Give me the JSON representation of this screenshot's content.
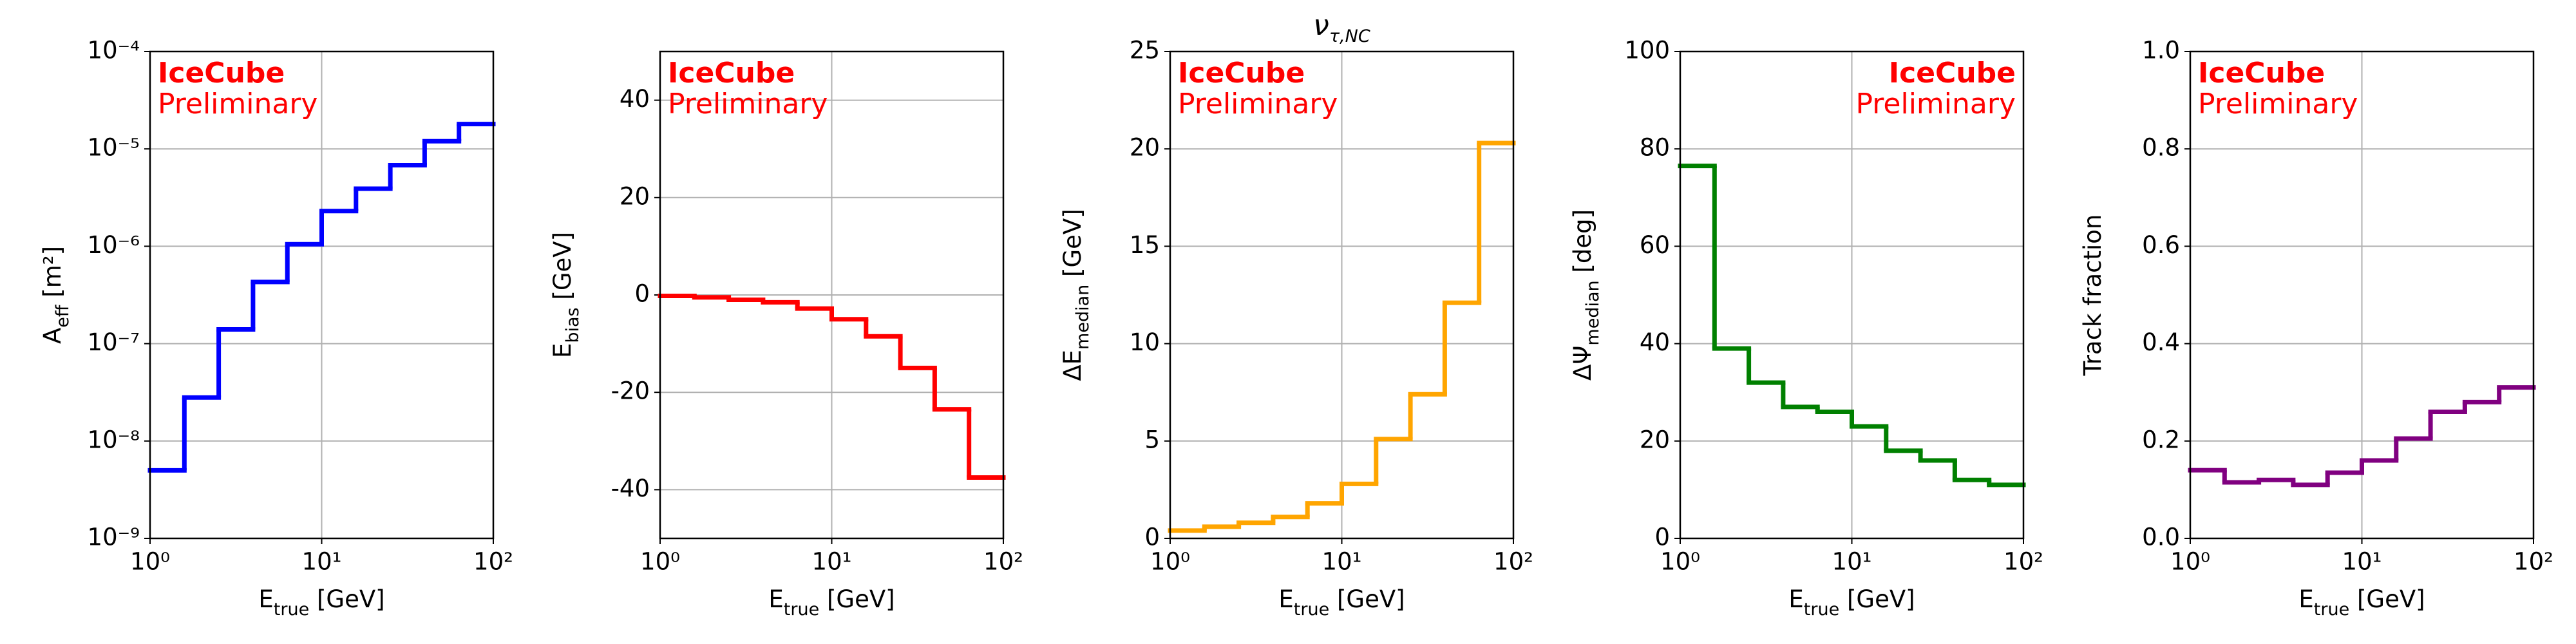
{
  "chart_data": [
    {
      "type": "histogram",
      "ylabel": [
        "A",
        "eff",
        " [m²]"
      ],
      "xlabel": [
        "E",
        "true",
        " [GeV]"
      ],
      "annotation": [
        "IceCube",
        "Preliminary"
      ],
      "annotation_position": "left",
      "color": "#0000ff",
      "bins": [
        1,
        1.585,
        2.512,
        3.981,
        6.31,
        10,
        15.85,
        25.12,
        39.81,
        63.1,
        100
      ],
      "values": [
        5e-09,
        2.8e-08,
        1.4e-07,
        4.3e-07,
        1.05e-06,
        2.3e-06,
        3.9e-06,
        6.8e-06,
        1.2e-05,
        1.8e-05
      ],
      "xscale": "log",
      "yscale": "log",
      "grid": true,
      "xlim": [
        1,
        100
      ],
      "xticks": [
        {
          "value": 1,
          "label": "10⁰"
        },
        {
          "value": 10,
          "label": "10¹"
        },
        {
          "value": 100,
          "label": "10²"
        }
      ],
      "ylim": [
        1e-09,
        0.0001
      ],
      "yticks": [
        {
          "value": 1e-09,
          "label": "10⁻⁹"
        },
        {
          "value": 1e-08,
          "label": "10⁻⁸"
        },
        {
          "value": 1e-07,
          "label": "10⁻⁷"
        },
        {
          "value": 1e-06,
          "label": "10⁻⁶"
        },
        {
          "value": 1e-05,
          "label": "10⁻⁵"
        },
        {
          "value": 0.0001,
          "label": "10⁻⁴"
        }
      ]
    },
    {
      "type": "histogram",
      "ylabel": [
        "E",
        "bias",
        " [GeV]"
      ],
      "xlabel": [
        "E",
        "true",
        " [GeV]"
      ],
      "annotation": [
        "IceCube",
        "Preliminary"
      ],
      "annotation_position": "left",
      "color": "#ff0000",
      "bins": [
        1,
        1.585,
        2.512,
        3.981,
        6.31,
        10,
        15.85,
        25.12,
        39.81,
        63.1,
        100
      ],
      "values": [
        -0.2,
        -0.5,
        -1,
        -1.5,
        -2.8,
        -5,
        -8.5,
        -15,
        -23.5,
        -37.5
      ],
      "xscale": "log",
      "yscale": "linear",
      "grid": true,
      "xlim": [
        1,
        100
      ],
      "xticks": [
        {
          "value": 1,
          "label": "10⁰"
        },
        {
          "value": 10,
          "label": "10¹"
        },
        {
          "value": 100,
          "label": "10²"
        }
      ],
      "ylim": [
        -50,
        50
      ],
      "yticks": [
        -40,
        -20,
        0,
        20,
        40
      ]
    },
    {
      "type": "histogram",
      "title": [
        "ν",
        "τ,NC"
      ],
      "ylabel": [
        "ΔE",
        "median",
        " [GeV]"
      ],
      "xlabel": [
        "E",
        "true",
        " [GeV]"
      ],
      "annotation": [
        "IceCube",
        "Preliminary"
      ],
      "annotation_position": "left",
      "color": "#ffa500",
      "bins": [
        1,
        1.585,
        2.512,
        3.981,
        6.31,
        10,
        15.85,
        25.12,
        39.81,
        63.1,
        100
      ],
      "values": [
        0.4,
        0.6,
        0.8,
        1.1,
        1.8,
        2.8,
        5.1,
        7.4,
        12.1,
        20.3
      ],
      "xscale": "log",
      "yscale": "linear",
      "grid": true,
      "xlim": [
        1,
        100
      ],
      "xticks": [
        {
          "value": 1,
          "label": "10⁰"
        },
        {
          "value": 10,
          "label": "10¹"
        },
        {
          "value": 100,
          "label": "10²"
        }
      ],
      "ylim": [
        0,
        25
      ],
      "yticks": [
        0,
        5,
        10,
        15,
        20,
        25
      ]
    },
    {
      "type": "histogram",
      "ylabel": [
        "ΔΨ",
        "median",
        " [deg]"
      ],
      "xlabel": [
        "E",
        "true",
        " [GeV]"
      ],
      "annotation": [
        "IceCube",
        "Preliminary"
      ],
      "annotation_position": "right",
      "color": "#008000",
      "bins": [
        1,
        1.585,
        2.512,
        3.981,
        6.31,
        10,
        15.85,
        25.12,
        39.81,
        63.1,
        100
      ],
      "values": [
        76.5,
        39,
        32,
        27,
        26,
        23,
        18,
        16,
        12,
        11
      ],
      "xscale": "log",
      "yscale": "linear",
      "grid": true,
      "xlim": [
        1,
        100
      ],
      "xticks": [
        {
          "value": 1,
          "label": "10⁰"
        },
        {
          "value": 10,
          "label": "10¹"
        },
        {
          "value": 100,
          "label": "10²"
        }
      ],
      "ylim": [
        0,
        100
      ],
      "yticks": [
        0,
        20,
        40,
        60,
        80,
        100
      ]
    },
    {
      "type": "histogram",
      "ylabel": [
        "Track fraction"
      ],
      "xlabel": [
        "E",
        "true",
        " [GeV]"
      ],
      "annotation": [
        "IceCube",
        "Preliminary"
      ],
      "annotation_position": "left",
      "color": "#800080",
      "bins": [
        1,
        1.585,
        2.512,
        3.981,
        6.31,
        10,
        15.85,
        25.12,
        39.81,
        63.1,
        100
      ],
      "values": [
        0.14,
        0.115,
        0.12,
        0.11,
        0.135,
        0.16,
        0.205,
        0.26,
        0.28,
        0.31
      ],
      "xscale": "log",
      "yscale": "linear",
      "grid": true,
      "xlim": [
        1,
        100
      ],
      "xticks": [
        {
          "value": 1,
          "label": "10⁰"
        },
        {
          "value": 10,
          "label": "10¹"
        },
        {
          "value": 100,
          "label": "10²"
        }
      ],
      "ylim": [
        0,
        1
      ],
      "yticks": [
        {
          "value": 0,
          "label": "0.0"
        },
        0.2,
        0.4,
        0.6,
        0.8,
        {
          "value": 1,
          "label": "1.0"
        }
      ]
    }
  ]
}
